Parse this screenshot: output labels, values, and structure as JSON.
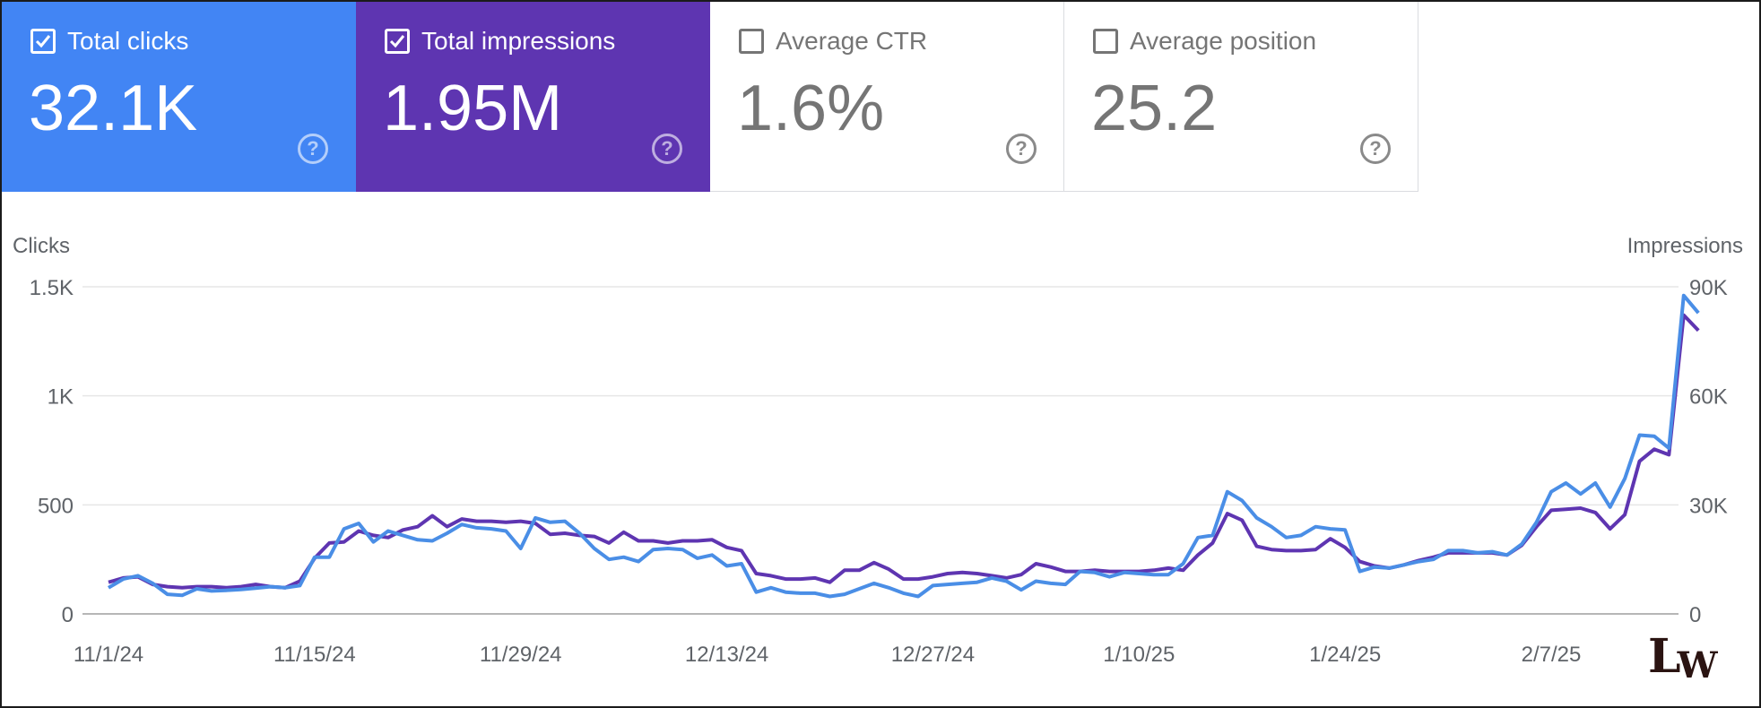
{
  "cards": [
    {
      "label": "Total clicks",
      "value": "32.1K",
      "checked": true,
      "color": "#4285f4",
      "icon": "help-icon"
    },
    {
      "label": "Total impressions",
      "value": "1.95M",
      "checked": true,
      "color": "#5e35b1",
      "icon": "help-icon"
    },
    {
      "label": "Average CTR",
      "value": "1.6%",
      "checked": false,
      "color": "#ffffff",
      "icon": "help-icon"
    },
    {
      "label": "Average position",
      "value": "25.2",
      "checked": false,
      "color": "#ffffff",
      "icon": "help-icon"
    }
  ],
  "help_glyph": "?",
  "chart_data": {
    "type": "line",
    "ylabel_left": "Clicks",
    "ylabel_right": "Impressions",
    "y_left_ticks": [
      "0",
      "500",
      "1K",
      "1.5K"
    ],
    "y_left_range": [
      0,
      1500
    ],
    "y_right_ticks": [
      "0",
      "30K",
      "60K",
      "90K"
    ],
    "y_right_range": [
      0,
      90000
    ],
    "x_ticks": [
      "11/1/24",
      "11/15/24",
      "11/29/24",
      "12/13/24",
      "12/27/24",
      "1/10/25",
      "1/24/25",
      "2/7/25"
    ],
    "x_start": "2024-11-01",
    "x_end": "2025-02-15",
    "grid": true,
    "legend": "none",
    "series": [
      {
        "name": "Total clicks",
        "axis": "left",
        "color": "#4a8ee6",
        "values": [
          120,
          160,
          175,
          140,
          90,
          85,
          115,
          105,
          108,
          112,
          118,
          125,
          120,
          130,
          260,
          260,
          390,
          415,
          330,
          380,
          360,
          340,
          335,
          370,
          410,
          395,
          390,
          380,
          300,
          440,
          420,
          425,
          370,
          300,
          250,
          260,
          240,
          295,
          300,
          295,
          255,
          270,
          220,
          230,
          100,
          120,
          100,
          95,
          95,
          80,
          90,
          115,
          140,
          120,
          95,
          80,
          130,
          135,
          140,
          145,
          165,
          150,
          110,
          150,
          140,
          135,
          195,
          190,
          170,
          190,
          185,
          180,
          180,
          230,
          350,
          360,
          560,
          520,
          440,
          400,
          350,
          360,
          400,
          390,
          385,
          195,
          215,
          210,
          225,
          240,
          250,
          290,
          290,
          280,
          285,
          270,
          320,
          420,
          560,
          600,
          550,
          600,
          490,
          620,
          820,
          815,
          760,
          1460,
          1380
        ],
        "unit": "clicks"
      },
      {
        "name": "Total impressions",
        "axis": "right",
        "color": "#5e35b1",
        "values": [
          8700,
          9900,
          10200,
          8100,
          7500,
          7200,
          7500,
          7500,
          7200,
          7500,
          8100,
          7500,
          7200,
          9000,
          15300,
          19500,
          19800,
          22800,
          21600,
          21000,
          23100,
          24000,
          27000,
          24000,
          26100,
          25500,
          25500,
          25200,
          25500,
          24900,
          21900,
          22200,
          21600,
          21300,
          19500,
          22500,
          20100,
          20100,
          19500,
          20100,
          20100,
          20400,
          18300,
          17400,
          11100,
          10500,
          9600,
          9600,
          9900,
          8700,
          12000,
          12000,
          14100,
          12300,
          9600,
          9600,
          10200,
          11100,
          11400,
          11100,
          10500,
          9900,
          10800,
          13800,
          12900,
          11700,
          11700,
          12000,
          11700,
          11700,
          11700,
          12000,
          12600,
          12000,
          16200,
          19500,
          27600,
          25800,
          18600,
          17700,
          17400,
          17400,
          17700,
          20700,
          18300,
          14400,
          13200,
          12600,
          13500,
          14700,
          15600,
          16800,
          16800,
          16800,
          16800,
          16200,
          18900,
          24000,
          28500,
          28800,
          29100,
          27900,
          23400,
          27300,
          42000,
          45300,
          43800,
          82200,
          78000
        ],
        "unit": "impressions"
      }
    ]
  },
  "watermark": {
    "l": "L",
    "w": "W"
  }
}
